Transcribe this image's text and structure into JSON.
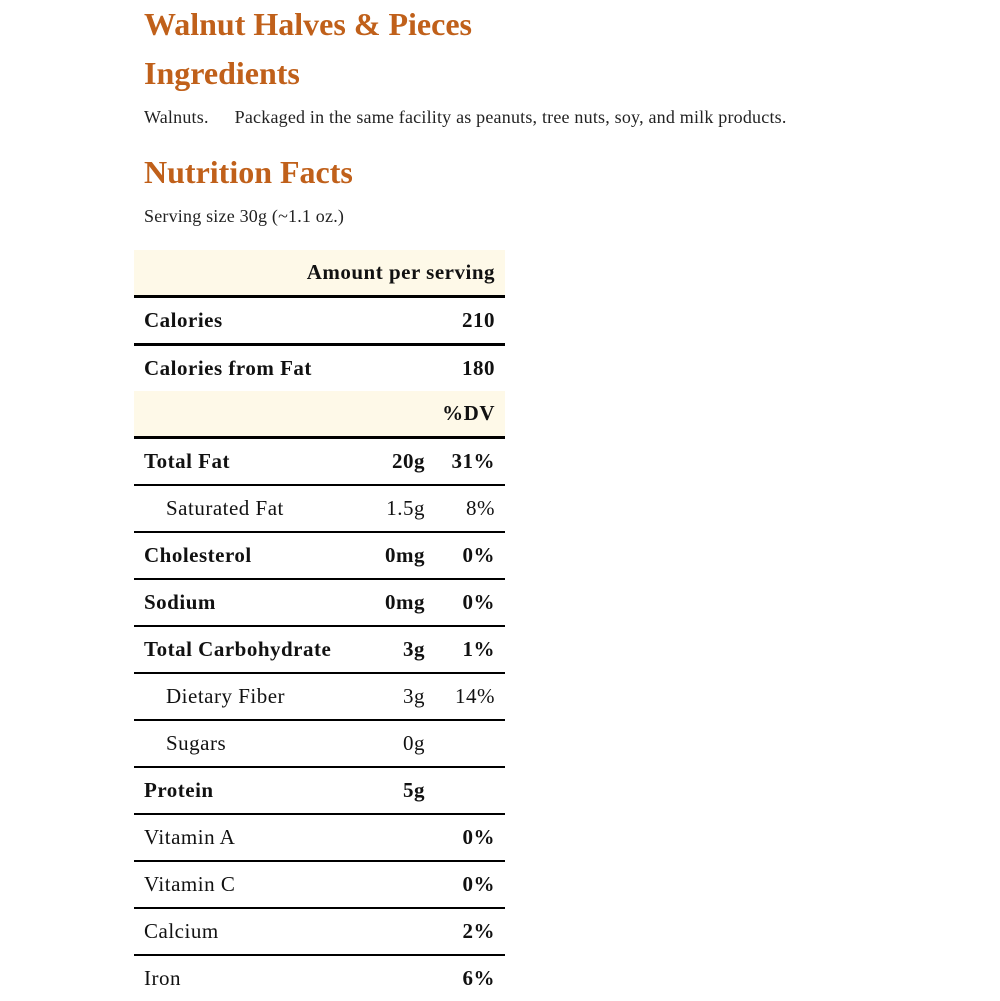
{
  "product_title": "Walnut Halves & Pieces",
  "ingredients": {
    "heading": "Ingredients",
    "text": "Walnuts.",
    "allergen_note": "Packaged in the same facility as peanuts, tree nuts, soy, and milk products."
  },
  "nutrition": {
    "heading": "Nutrition Facts",
    "serving_size": "Serving size 30g (~1.1 oz.)",
    "amount_header": "Amount per serving",
    "calories": {
      "label": "Calories",
      "value": "210"
    },
    "calories_from_fat": {
      "label": "Calories from Fat",
      "value": "180"
    },
    "dv_header": "%DV",
    "rows": [
      {
        "label": "Total Fat",
        "amount": "20g",
        "dv": "31%"
      },
      {
        "label": "Saturated Fat",
        "amount": "1.5g",
        "dv": "8%"
      },
      {
        "label": "Cholesterol",
        "amount": "0mg",
        "dv": "0%"
      },
      {
        "label": "Sodium",
        "amount": "0mg",
        "dv": "0%"
      },
      {
        "label": "Total Carbohydrate",
        "amount": "3g",
        "dv": "1%"
      },
      {
        "label": "Dietary Fiber",
        "amount": "3g",
        "dv": "14%"
      },
      {
        "label": "Sugars",
        "amount": "0g",
        "dv": ""
      },
      {
        "label": "Protein",
        "amount": "5g",
        "dv": ""
      },
      {
        "label": "Vitamin A",
        "amount": "",
        "dv": "0%"
      },
      {
        "label": "Vitamin C",
        "amount": "",
        "dv": "0%"
      },
      {
        "label": "Calcium",
        "amount": "",
        "dv": "2%"
      },
      {
        "label": "Iron",
        "amount": "",
        "dv": "6%"
      }
    ]
  },
  "colors": {
    "heading": "#c0601a",
    "header_bg": "#fef9e8"
  }
}
